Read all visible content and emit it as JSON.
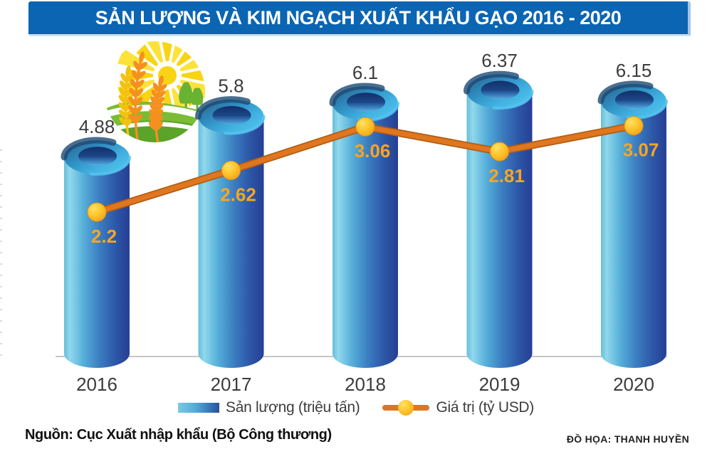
{
  "title": "SẢN LƯỢNG VÀ KIM NGẠCH XUẤT KHẨU GẠO 2016 - 2020",
  "source": "Nguồn: Cục Xuất nhập khẩu (Bộ Công thương)",
  "credit": "ĐỒ HỌA: THANH HUYỀN",
  "legend": {
    "production_label": "Sản lượng  (triệu tấn)",
    "value_label": "Giá trị (tỷ USD)"
  },
  "logo": {
    "name": "agriculture-sun-wheat-logo"
  },
  "colors": {
    "banner_blue": "#0b65b2",
    "bar_light": "#86d0e6",
    "bar_dark": "#263f94",
    "line_orange": "#e0761f",
    "line_shadow": "#b05e14",
    "dot_yellow": "#fdc62e",
    "value_label_orange": "#f8a523",
    "text_dark": "#3c3c3c",
    "axis_gray": "#b3b3b3"
  },
  "chart_data": {
    "type": "bar",
    "categories": [
      "2016",
      "2017",
      "2018",
      "2019",
      "2020"
    ],
    "series": [
      {
        "name": "Sản lượng (triệu tấn)",
        "type": "bar",
        "values": [
          4.88,
          5.8,
          6.1,
          6.37,
          6.15
        ]
      },
      {
        "name": "Giá trị (tỷ USD)",
        "type": "line",
        "values": [
          2.2,
          2.62,
          3.06,
          2.81,
          3.07
        ]
      }
    ],
    "bar_axis_range": [
      0,
      6.5
    ],
    "line_axis_range": [
      0,
      3.5
    ],
    "grid": false,
    "legend_position": "bottom"
  }
}
